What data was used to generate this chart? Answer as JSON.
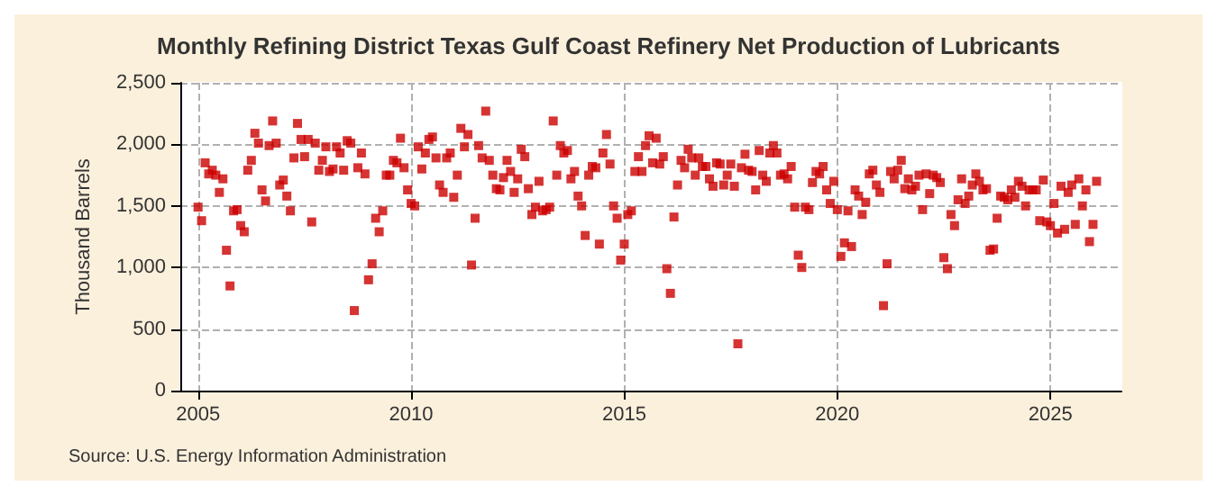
{
  "chart_data": {
    "type": "scatter",
    "title": "Monthly Refining District Texas Gulf Coast Refinery Net Production of Lubricants",
    "ylabel": "Thousand Barrels",
    "annotations": [
      "Source: U.S. Energy Information Administration"
    ],
    "marker": "square",
    "grid": true,
    "xlim": [
      "2004-08",
      "2026-09"
    ],
    "xticks": [
      "2005",
      "2010",
      "2015",
      "2020",
      "2025"
    ],
    "ylim": [
      0,
      2500
    ],
    "yticks": [
      0,
      500,
      {
        "value": 1000,
        "label": "1,000"
      },
      {
        "value": 1500,
        "label": "1,500"
      },
      {
        "value": 2000,
        "label": "2,000"
      },
      {
        "value": 2500,
        "label": "2,500"
      }
    ],
    "x": [
      "2005-01",
      "2005-02",
      "2005-03",
      "2005-04",
      "2005-05",
      "2005-06",
      "2005-07",
      "2005-08",
      "2005-09",
      "2005-10",
      "2005-11",
      "2005-12",
      "2006-01",
      "2006-02",
      "2006-03",
      "2006-04",
      "2006-05",
      "2006-06",
      "2006-07",
      "2006-08",
      "2006-09",
      "2006-10",
      "2006-11",
      "2006-12",
      "2007-01",
      "2007-02",
      "2007-03",
      "2007-04",
      "2007-05",
      "2007-06",
      "2007-07",
      "2007-08",
      "2007-09",
      "2007-10",
      "2007-11",
      "2007-12",
      "2008-01",
      "2008-02",
      "2008-03",
      "2008-04",
      "2008-05",
      "2008-06",
      "2008-07",
      "2008-08",
      "2008-09",
      "2008-10",
      "2008-11",
      "2008-12",
      "2009-01",
      "2009-02",
      "2009-03",
      "2009-04",
      "2009-05",
      "2009-06",
      "2009-07",
      "2009-08",
      "2009-09",
      "2009-10",
      "2009-11",
      "2009-12",
      "2010-01",
      "2010-02",
      "2010-03",
      "2010-04",
      "2010-05",
      "2010-06",
      "2010-07",
      "2010-08",
      "2010-09",
      "2010-10",
      "2010-11",
      "2010-12",
      "2011-01",
      "2011-02",
      "2011-03",
      "2011-04",
      "2011-05",
      "2011-06",
      "2011-07",
      "2011-08",
      "2011-09",
      "2011-10",
      "2011-11",
      "2011-12",
      "2012-01",
      "2012-02",
      "2012-03",
      "2012-04",
      "2012-05",
      "2012-06",
      "2012-07",
      "2012-08",
      "2012-09",
      "2012-10",
      "2012-11",
      "2012-12",
      "2013-01",
      "2013-02",
      "2013-03",
      "2013-04",
      "2013-05",
      "2013-06",
      "2013-07",
      "2013-08",
      "2013-09",
      "2013-10",
      "2013-11",
      "2013-12",
      "2014-01",
      "2014-02",
      "2014-03",
      "2014-04",
      "2014-05",
      "2014-06",
      "2014-07",
      "2014-08",
      "2014-09",
      "2014-10",
      "2014-11",
      "2014-12",
      "2015-01",
      "2015-02",
      "2015-03",
      "2015-04",
      "2015-05",
      "2015-06",
      "2015-07",
      "2015-08",
      "2015-09",
      "2015-10",
      "2015-11",
      "2015-12",
      "2016-01",
      "2016-02",
      "2016-03",
      "2016-04",
      "2016-05",
      "2016-06",
      "2016-07",
      "2016-08",
      "2016-09",
      "2016-10",
      "2016-11",
      "2016-12",
      "2017-01",
      "2017-02",
      "2017-03",
      "2017-04",
      "2017-05",
      "2017-06",
      "2017-07",
      "2017-08",
      "2017-09",
      "2017-10",
      "2017-11",
      "2017-12",
      "2018-01",
      "2018-02",
      "2018-03",
      "2018-04",
      "2018-05",
      "2018-06",
      "2018-07",
      "2018-08",
      "2018-09",
      "2018-10",
      "2018-11",
      "2018-12",
      "2019-01",
      "2019-02",
      "2019-03",
      "2019-04",
      "2019-05",
      "2019-06",
      "2019-07",
      "2019-08",
      "2019-09",
      "2019-10",
      "2019-11",
      "2019-12",
      "2020-01",
      "2020-02",
      "2020-03",
      "2020-04",
      "2020-05",
      "2020-06",
      "2020-07",
      "2020-08",
      "2020-09",
      "2020-10",
      "2020-11",
      "2020-12",
      "2021-01",
      "2021-02",
      "2021-03",
      "2021-04",
      "2021-05",
      "2021-06",
      "2021-07",
      "2021-08",
      "2021-09",
      "2021-10",
      "2021-11",
      "2021-12",
      "2022-01",
      "2022-02",
      "2022-03",
      "2022-04",
      "2022-05",
      "2022-06",
      "2022-07",
      "2022-08",
      "2022-09",
      "2022-10",
      "2022-11",
      "2022-12",
      "2023-01",
      "2023-02",
      "2023-03",
      "2023-04",
      "2023-05",
      "2023-06",
      "2023-07",
      "2023-08",
      "2023-09",
      "2023-10",
      "2023-11",
      "2023-12",
      "2024-01",
      "2024-02",
      "2024-03",
      "2024-04",
      "2024-05",
      "2024-06",
      "2024-07",
      "2024-08",
      "2024-09",
      "2024-10",
      "2024-11",
      "2024-12",
      "2025-01",
      "2025-02",
      "2025-03",
      "2025-04",
      "2025-05",
      "2025-06",
      "2025-07",
      "2025-08",
      "2025-09",
      "2025-10",
      "2025-11",
      "2025-12",
      "2026-01",
      "2026-02"
    ],
    "series": [
      {
        "color": "#cc0000",
        "values": [
          1490,
          1380,
          1850,
          1760,
          1790,
          1750,
          1610,
          1720,
          1140,
          850,
          1460,
          1470,
          1340,
          1290,
          1790,
          1870,
          2090,
          2010,
          1630,
          1540,
          1990,
          2190,
          2010,
          1670,
          1710,
          1580,
          1460,
          1890,
          2170,
          2040,
          1900,
          2040,
          1370,
          2010,
          1790,
          1870,
          1980,
          1780,
          1800,
          1980,
          1930,
          1790,
          2030,
          2010,
          650,
          1810,
          1930,
          1760,
          900,
          1030,
          1400,
          1290,
          1460,
          1750,
          1750,
          1870,
          1850,
          2050,
          1810,
          1630,
          1520,
          1500,
          1980,
          1800,
          1930,
          2040,
          2060,
          1890,
          1670,
          1610,
          1890,
          1930,
          1570,
          1750,
          2130,
          1980,
          2080,
          1020,
          1400,
          1990,
          1890,
          2270,
          1870,
          1750,
          1640,
          1630,
          1730,
          1870,
          1780,
          1610,
          1720,
          1960,
          1900,
          1640,
          1430,
          1490,
          1700,
          1460,
          1470,
          1490,
          2190,
          1750,
          1990,
          1930,
          1950,
          1720,
          1780,
          1580,
          1500,
          1260,
          1750,
          1820,
          1810,
          1190,
          1930,
          2080,
          1840,
          1500,
          1400,
          1060,
          1190,
          1430,
          1460,
          1780,
          1900,
          1780,
          1990,
          2070,
          1850,
          2050,
          1840,
          1900,
          990,
          790,
          1410,
          1670,
          1870,
          1810,
          1960,
          1890,
          1750,
          1890,
          1820,
          1820,
          1720,
          1660,
          1850,
          1840,
          1670,
          1750,
          1840,
          1660,
          380,
          1810,
          1920,
          1790,
          1780,
          1630,
          1950,
          1750,
          1700,
          1930,
          1990,
          1930,
          1750,
          1760,
          1720,
          1820,
          1490,
          1100,
          1000,
          1490,
          1470,
          1690,
          1780,
          1760,
          1820,
          1630,
          1520,
          1700,
          1470,
          1090,
          1200,
          1460,
          1170,
          1630,
          1580,
          1430,
          1530,
          1760,
          1790,
          1670,
          1610,
          690,
          1030,
          1780,
          1720,
          1790,
          1870,
          1640,
          1720,
          1630,
          1660,
          1750,
          1470,
          1760,
          1600,
          1750,
          1730,
          1690,
          1080,
          990,
          1430,
          1340,
          1550,
          1720,
          1520,
          1580,
          1670,
          1760,
          1700,
          1630,
          1640,
          1140,
          1150,
          1400,
          1580,
          1570,
          1550,
          1630,
          1570,
          1700,
          1660,
          1500,
          1630,
          1630,
          1630,
          1380,
          1710,
          1370,
          1340,
          1520,
          1280,
          1660,
          1310,
          1610,
          1670,
          1350,
          1720,
          1500,
          1630,
          1210,
          1350,
          1700
        ]
      }
    ]
  }
}
